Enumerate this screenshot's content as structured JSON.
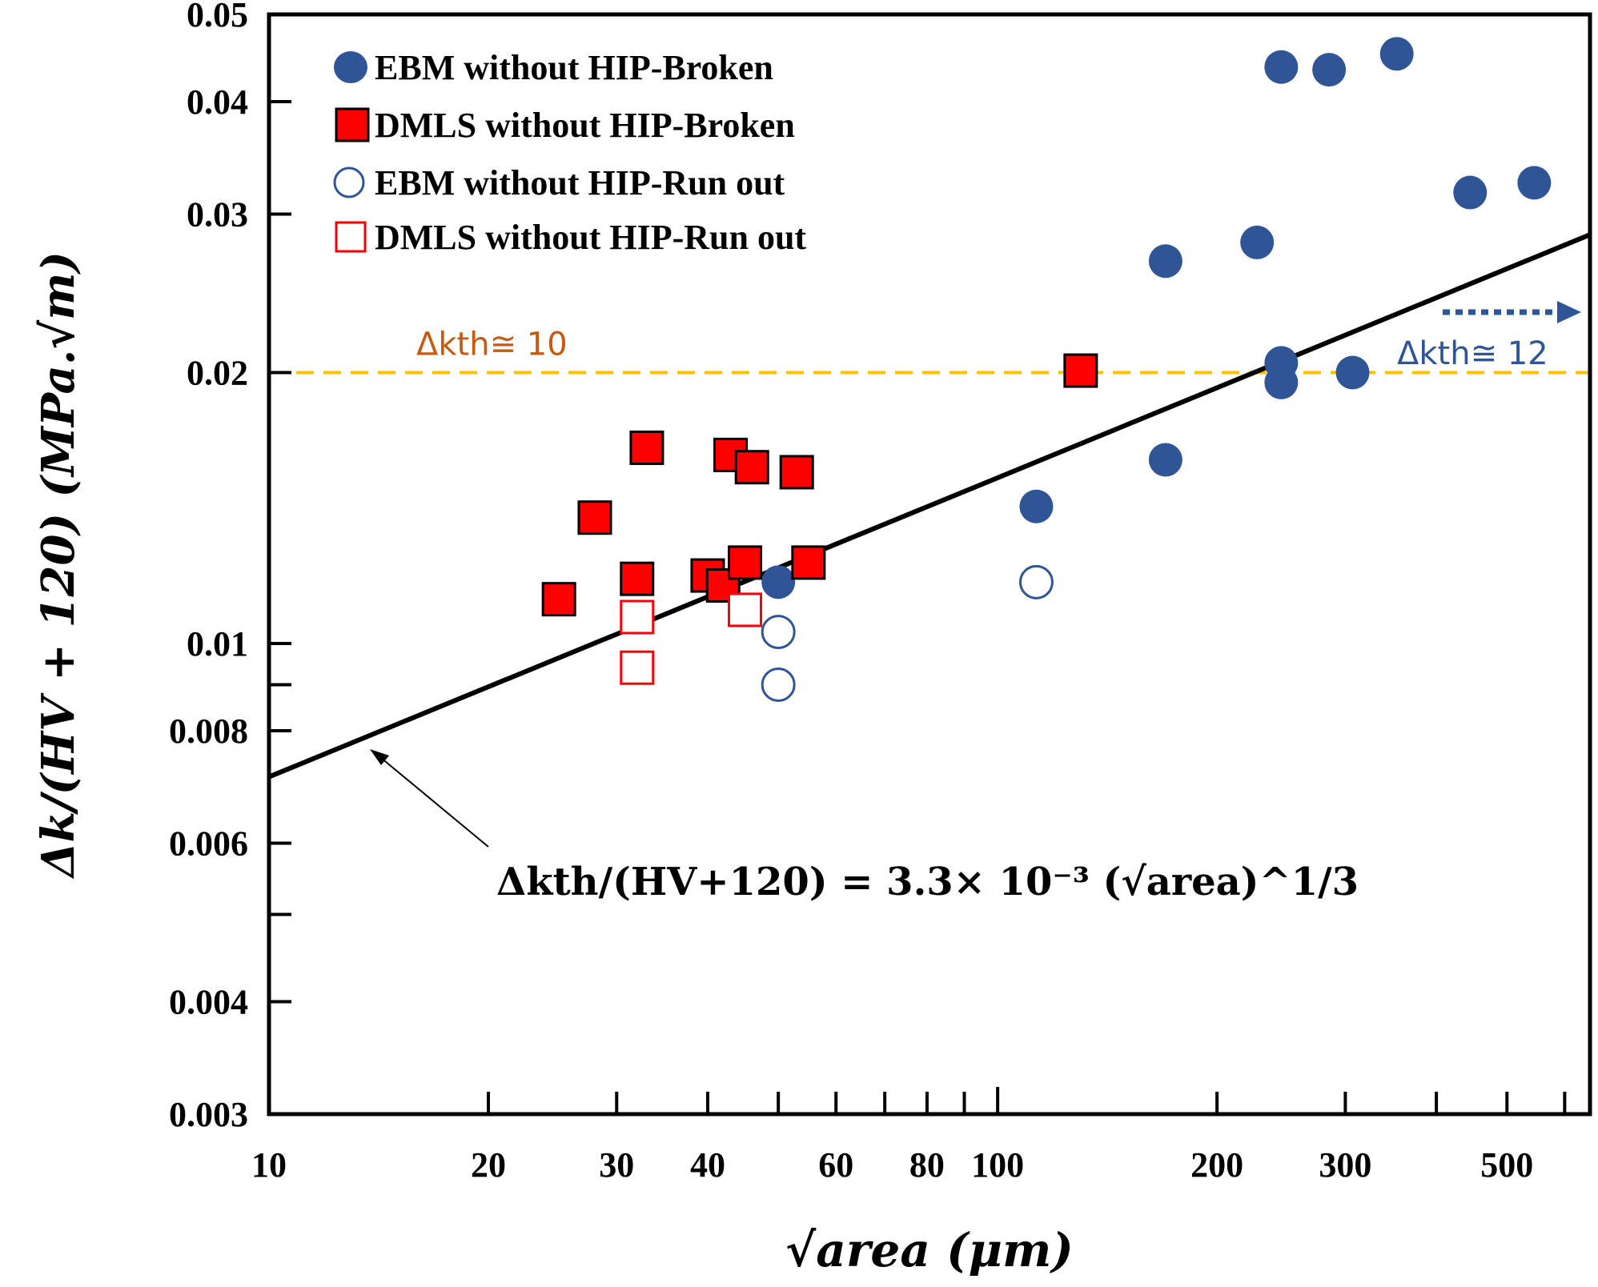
{
  "chart_data": {
    "type": "scatter",
    "xscale": "log",
    "yscale": "log",
    "xlim": [
      10,
      650
    ],
    "ylim": [
      0.003,
      0.05
    ],
    "xlabel": "√area (μm)",
    "ylabel": "Δk/(HV + 120) (MPa.√m)",
    "x_ticks_major": [
      10,
      100
    ],
    "x_tick_labels": [
      "10",
      "20",
      "30",
      "40",
      "60",
      "80",
      "100",
      "200",
      "300",
      "500"
    ],
    "x_tick_values": [
      10,
      20,
      30,
      40,
      60,
      80,
      100,
      200,
      300,
      500
    ],
    "x_minor_ticks": [
      20,
      30,
      40,
      50,
      60,
      70,
      80,
      90,
      200,
      300,
      400,
      500,
      600
    ],
    "y_tick_labels": [
      "0.05",
      "0.04",
      "0.03",
      "0.02",
      "0.01",
      "0.008",
      "0.006",
      "0.004",
      "0.003"
    ],
    "y_tick_values": [
      0.05,
      0.04,
      0.03,
      0.02,
      0.01,
      0.008,
      0.006,
      0.004,
      0.003
    ],
    "y_minor_ticks": [
      0.009,
      0.005
    ],
    "legend_position": "top-left",
    "series": [
      {
        "name": "EBM without HIP-Broken",
        "marker": "filled-circle",
        "color": "#2F5597",
        "points": [
          [
            50,
            0.0117
          ],
          [
            113,
            0.0142
          ],
          [
            170,
            0.0266
          ],
          [
            170,
            0.016
          ],
          [
            227,
            0.0279
          ],
          [
            245,
            0.0437
          ],
          [
            245,
            0.0205
          ],
          [
            245,
            0.0195
          ],
          [
            285,
            0.0434
          ],
          [
            307,
            0.02
          ],
          [
            353,
            0.0452
          ],
          [
            445,
            0.0317
          ],
          [
            545,
            0.0325
          ]
        ]
      },
      {
        "name": "DMLS without HIP-Broken",
        "marker": "filled-square",
        "color": "#FF0000",
        "points": [
          [
            25,
            0.0112
          ],
          [
            28,
            0.0138
          ],
          [
            32,
            0.0118
          ],
          [
            33,
            0.0165
          ],
          [
            40,
            0.0119
          ],
          [
            42,
            0.0116
          ],
          [
            43,
            0.0162
          ],
          [
            45,
            0.0123
          ],
          [
            46,
            0.0157
          ],
          [
            53,
            0.0155
          ],
          [
            55,
            0.0123
          ],
          [
            130,
            0.0201
          ]
        ]
      },
      {
        "name": "EBM without HIP-Run out",
        "marker": "open-circle",
        "color": "#2F5597",
        "points": [
          [
            50,
            0.0103
          ],
          [
            50,
            0.009
          ],
          [
            113,
            0.0117
          ]
        ]
      },
      {
        "name": "DMLS without HIP-Run out",
        "marker": "open-square",
        "color": "#FF0000",
        "points": [
          [
            32,
            0.0107
          ],
          [
            32,
            0.0094
          ],
          [
            45,
            0.0109
          ]
        ]
      }
    ],
    "fit_line": {
      "equation": "Δkth/(HV+120) = 3.3× 10⁻³ (√area)^1/3",
      "color": "#000000",
      "x": [
        10,
        650
      ],
      "y": [
        0.00711,
        0.02846
      ]
    },
    "reference_lines": [
      {
        "y": 0.02,
        "style": "dashed",
        "color": "#FFC000",
        "label": "Δkth≅ 10",
        "label_color": "#C55A11"
      }
    ],
    "annotations": [
      {
        "text": "Δkth≅ 12",
        "color": "#2F5597",
        "arrow": "dotted-right"
      }
    ]
  }
}
